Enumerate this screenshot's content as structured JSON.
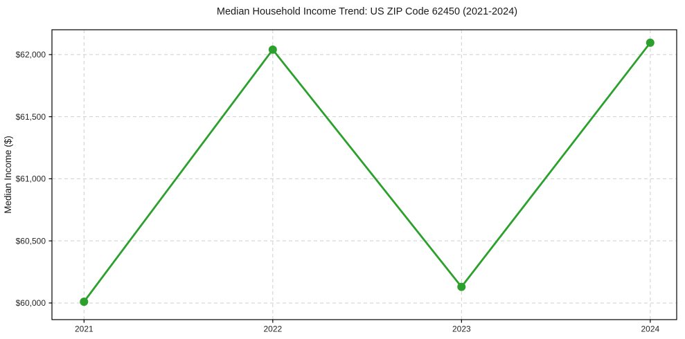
{
  "chart_data": {
    "type": "line",
    "title": "Median Household Income Trend: US ZIP Code 62450 (2021-2024)",
    "xlabel": "",
    "ylabel": "Median Income ($)",
    "x": [
      2021,
      2022,
      2023,
      2024
    ],
    "x_tick_labels": [
      "2021",
      "2022",
      "2023",
      "2024"
    ],
    "series": [
      {
        "name": "Median Household Income",
        "values": [
          60010,
          62040,
          60130,
          62095
        ]
      }
    ],
    "y_ticks": [
      60000,
      60500,
      61000,
      61500,
      62000
    ],
    "y_tick_labels": [
      "$60,000",
      "$60,500",
      "$61,000",
      "$61,500",
      "$62,000"
    ],
    "xlim": [
      2020.83,
      2024.14
    ],
    "ylim": [
      59866,
      62200
    ],
    "grid": true,
    "grid_style": "dashed",
    "legend": "none",
    "colors": {
      "line": "#2ca02c",
      "marker": "#2ca02c",
      "grid": "#cfcfcf",
      "spine": "#000000",
      "background": "#ffffff",
      "text": "#262626"
    }
  }
}
